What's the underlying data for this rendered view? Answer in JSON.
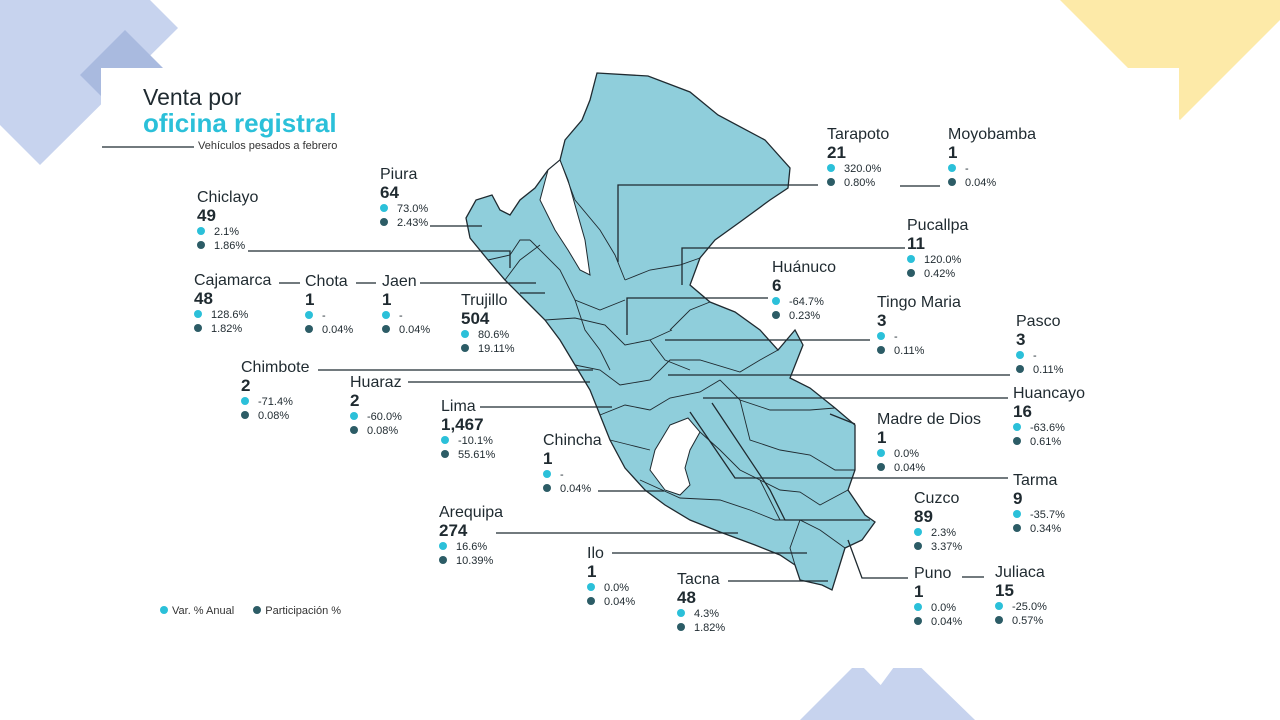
{
  "title": {
    "line1": "Venta por",
    "line2": "oficina registral",
    "subtitle": "Vehículos pesados a febrero"
  },
  "legend": {
    "var": "Var. % Anual",
    "part": "Participación %"
  },
  "colors": {
    "map": "#8fcedb",
    "accent": "#2bc0d9",
    "dark": "#2c5c66",
    "blue_shape": "#c7d3ee",
    "yellow_shape": "#fdeaa8"
  },
  "cities": [
    {
      "name": "Tarapoto",
      "value": "21",
      "var": "320.0%",
      "part": "0.80%"
    },
    {
      "name": "Moyobamba",
      "value": "1",
      "var": "-",
      "part": "0.04%"
    },
    {
      "name": "Piura",
      "value": "64",
      "var": "73.0%",
      "part": "2.43%"
    },
    {
      "name": "Chiclayo",
      "value": "49",
      "var": "2.1%",
      "part": "1.86%"
    },
    {
      "name": "Pucallpa",
      "value": "11",
      "var": "120.0%",
      "part": "0.42%"
    },
    {
      "name": "Huánuco",
      "value": "6",
      "var": "-64.7%",
      "part": "0.23%"
    },
    {
      "name": "Cajamarca",
      "value": "48",
      "var": "128.6%",
      "part": "1.82%"
    },
    {
      "name": "Chota",
      "value": "1",
      "var": "-",
      "part": "0.04%"
    },
    {
      "name": "Jaen",
      "value": "1",
      "var": "-",
      "part": "0.04%"
    },
    {
      "name": "Trujillo",
      "value": "504",
      "var": "80.6%",
      "part": "19.11%"
    },
    {
      "name": "Tingo Maria",
      "value": "3",
      "var": "-",
      "part": "0.11%"
    },
    {
      "name": "Pasco",
      "value": "3",
      "var": "-",
      "part": "0.11%"
    },
    {
      "name": "Chimbote",
      "value": "2",
      "var": "-71.4%",
      "part": "0.08%"
    },
    {
      "name": "Huaraz",
      "value": "2",
      "var": "-60.0%",
      "part": "0.08%"
    },
    {
      "name": "Lima",
      "value": "1,467",
      "var": "-10.1%",
      "part": "55.61%"
    },
    {
      "name": "Huancayo",
      "value": "16",
      "var": "-63.6%",
      "part": "0.61%"
    },
    {
      "name": "Madre de Dios",
      "value": "1",
      "var": "0.0%",
      "part": "0.04%"
    },
    {
      "name": "Chincha",
      "value": "1",
      "var": "-",
      "part": "0.04%"
    },
    {
      "name": "Tarma",
      "value": "9",
      "var": "-35.7%",
      "part": "0.34%"
    },
    {
      "name": "Cuzco",
      "value": "89",
      "var": "2.3%",
      "part": "3.37%"
    },
    {
      "name": "Arequipa",
      "value": "274",
      "var": "16.6%",
      "part": "10.39%"
    },
    {
      "name": "Ilo",
      "value": "1",
      "var": "0.0%",
      "part": "0.04%"
    },
    {
      "name": "Tacna",
      "value": "48",
      "var": "4.3%",
      "part": "1.82%"
    },
    {
      "name": "Puno",
      "value": "1",
      "var": "0.0%",
      "part": "0.04%"
    },
    {
      "name": "Juliaca",
      "value": "15",
      "var": "-25.0%",
      "part": "0.57%"
    }
  ]
}
